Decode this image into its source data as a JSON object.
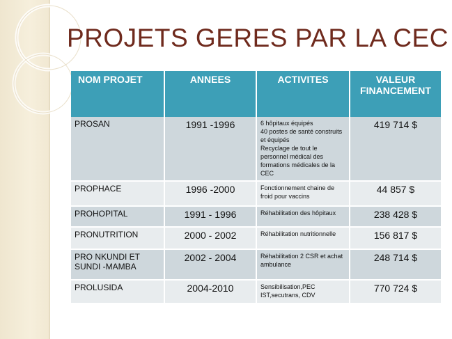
{
  "slide": {
    "title": "PROJETS GERES PAR LA CEC"
  },
  "table": {
    "headers": {
      "nom": "NOM PROJET",
      "annees": "ANNEES",
      "activites": "ACTIVITES",
      "valeur": "VALEUR FINANCEMENT"
    },
    "rows": [
      {
        "nom": "PROSAN",
        "annees": "1991 -1996",
        "activites": [
          "6 hôpitaux équipés",
          "40 postes de santé construits et équipés",
          "Recyclage de tout le personnel médical des formations médicales de la CEC"
        ],
        "valeur": "419  714 $"
      },
      {
        "nom": "PROPHACE",
        "annees": "1996 -2000",
        "activites": [
          "Fonctionnement chaine de froid pour vaccins"
        ],
        "valeur": "44  857 $"
      },
      {
        "nom": "PROHOPITAL",
        "annees": "1991 - 1996",
        "activites": [
          "Réhabilitation des hôpitaux"
        ],
        "valeur": "238  428 $"
      },
      {
        "nom": "PRONUTRITION",
        "annees": "2000 - 2002",
        "activites": [
          "Réhabilitation nutritionnelle"
        ],
        "valeur": "156  817 $"
      },
      {
        "nom": "PRO NKUNDI ET SUNDI -MAMBA",
        "annees": "2002 - 2004",
        "activites": [
          "Réhabilitation  2 CSR et achat ambulance"
        ],
        "valeur": "248  714 $"
      },
      {
        "nom": "PROLUSIDA",
        "annees": "2004-2010",
        "activites": [
          "Sensibilisation,PEC",
          "IST,secutrans, CDV"
        ],
        "valeur": "770  724 $"
      }
    ]
  },
  "colors": {
    "title": "#6f2a1d",
    "header_bg": "#3d9fb7",
    "row_dark": "#ced7dc",
    "row_light": "#e8ecee",
    "side_band": "#f3ebd6"
  }
}
